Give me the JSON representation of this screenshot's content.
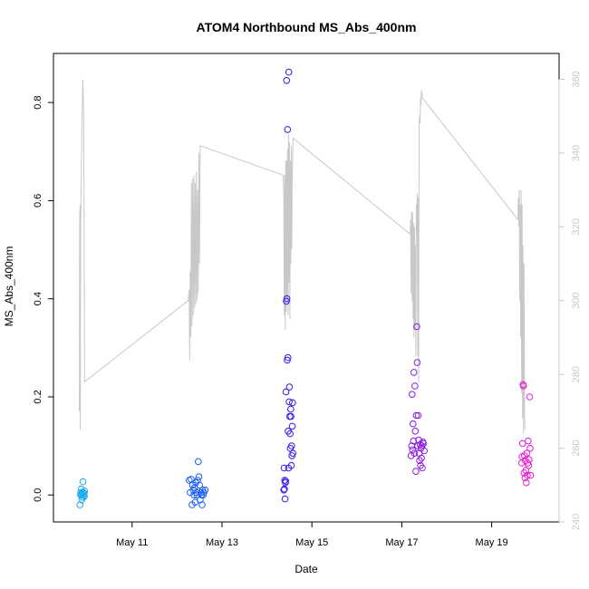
{
  "chart_data": {
    "type": "scatter",
    "title": "ATOM4 Northbound MS_Abs_400nm",
    "xlabel": "Date",
    "ylabel": "MS_Abs_400nm",
    "xlim": [
      "2016-05-09 06:00",
      "2016-05-20 12:00"
    ],
    "ylim": [
      -0.055,
      0.9
    ],
    "y2lim": [
      240,
      367
    ],
    "x_ticks": [
      {
        "date": "2016-05-11",
        "label": "May 11"
      },
      {
        "date": "2016-05-13",
        "label": "May 13"
      },
      {
        "date": "2016-05-15",
        "label": "May 15"
      },
      {
        "date": "2016-05-17",
        "label": "May 17"
      },
      {
        "date": "2016-05-19",
        "label": "May 19"
      }
    ],
    "y_ticks": [
      0.0,
      0.2,
      0.4,
      0.6,
      0.8
    ],
    "y_tick_labels": [
      "0.0",
      "0.2",
      "0.4",
      "0.6",
      "0.8"
    ],
    "y2_ticks": [
      240,
      260,
      280,
      300,
      320,
      340,
      360
    ],
    "y2_tick_labels": [
      "240",
      "260",
      "280",
      "300",
      "320",
      "340",
      "360"
    ],
    "colors": {
      "line": "#c8c8c8",
      "day1": "#1ea8f0",
      "day2": "#1a5cf5",
      "day3": "#3b14f0",
      "day4": "#8a1ae0",
      "day5": "#e61ad6",
      "axis": "#000000",
      "right_axis": "#c8c8c8"
    },
    "series": [
      {
        "color_key": "day1",
        "points": [
          [
            "2016-05-09 20:10",
            -0.02
          ],
          [
            "2016-05-09 20:25",
            0.0
          ],
          [
            "2016-05-09 20:35",
            0.005
          ],
          [
            "2016-05-09 20:45",
            0.012
          ],
          [
            "2016-05-09 21:00",
            0.0
          ],
          [
            "2016-05-09 21:10",
            -0.01
          ],
          [
            "2016-05-09 21:25",
            0.005
          ],
          [
            "2016-05-09 21:35",
            -0.005
          ],
          [
            "2016-05-09 21:45",
            0.027
          ],
          [
            "2016-05-09 22:00",
            0.005
          ],
          [
            "2016-05-09 22:10",
            0.0
          ],
          [
            "2016-05-09 22:20",
            0.003
          ],
          [
            "2016-05-09 22:30",
            -0.003
          ],
          [
            "2016-05-09 22:40",
            0.008
          ]
        ]
      },
      {
        "color_key": "day2",
        "points": [
          [
            "2016-05-12 06:30",
            0.03
          ],
          [
            "2016-05-12 07:00",
            0.005
          ],
          [
            "2016-05-12 07:30",
            0.032
          ],
          [
            "2016-05-12 08:00",
            -0.02
          ],
          [
            "2016-05-12 08:20",
            0.02
          ],
          [
            "2016-05-12 08:40",
            0.01
          ],
          [
            "2016-05-12 09:00",
            0.0
          ],
          [
            "2016-05-12 09:20",
            0.015
          ],
          [
            "2016-05-12 09:40",
            -0.015
          ],
          [
            "2016-05-12 10:00",
            0.025
          ],
          [
            "2016-05-12 10:20",
            0.005
          ],
          [
            "2016-05-12 10:40",
            0.0
          ],
          [
            "2016-05-12 11:00",
            0.03
          ],
          [
            "2016-05-12 11:20",
            0.068
          ],
          [
            "2016-05-12 11:40",
            0.037
          ],
          [
            "2016-05-12 12:00",
            0.02
          ],
          [
            "2016-05-12 12:20",
            -0.01
          ],
          [
            "2016-05-12 12:40",
            0.005
          ],
          [
            "2016-05-12 13:00",
            0.0
          ],
          [
            "2016-05-12 13:20",
            -0.02
          ],
          [
            "2016-05-12 13:40",
            0.01
          ],
          [
            "2016-05-12 14:00",
            0.0
          ],
          [
            "2016-05-12 14:20",
            0.005
          ],
          [
            "2016-05-12 15:00",
            0.01
          ]
        ]
      },
      {
        "color_key": "day3",
        "points": [
          [
            "2016-05-14 09:00",
            0.01
          ],
          [
            "2016-05-14 09:10",
            0.055
          ],
          [
            "2016-05-14 09:20",
            0.012
          ],
          [
            "2016-05-14 09:30",
            0.03
          ],
          [
            "2016-05-14 09:40",
            -0.008
          ],
          [
            "2016-05-14 09:50",
            0.025
          ],
          [
            "2016-05-14 10:00",
            0.028
          ],
          [
            "2016-05-14 10:10",
            0.21
          ],
          [
            "2016-05-14 10:20",
            0.395
          ],
          [
            "2016-05-14 10:30",
            0.845
          ],
          [
            "2016-05-14 10:40",
            0.4
          ],
          [
            "2016-05-14 10:50",
            0.275
          ],
          [
            "2016-05-14 11:00",
            0.745
          ],
          [
            "2016-05-14 11:10",
            0.28
          ],
          [
            "2016-05-14 11:20",
            0.13
          ],
          [
            "2016-05-14 11:30",
            0.055
          ],
          [
            "2016-05-14 11:40",
            0.862
          ],
          [
            "2016-05-14 11:50",
            0.19
          ],
          [
            "2016-05-14 12:00",
            0.22
          ],
          [
            "2016-05-14 12:10",
            0.16
          ],
          [
            "2016-05-14 12:20",
            0.125
          ],
          [
            "2016-05-14 12:30",
            0.095
          ],
          [
            "2016-05-14 12:40",
            0.175
          ],
          [
            "2016-05-14 12:50",
            0.16
          ],
          [
            "2016-05-14 13:00",
            0.06
          ],
          [
            "2016-05-14 13:10",
            0.1
          ],
          [
            "2016-05-14 13:20",
            0.08
          ],
          [
            "2016-05-14 13:30",
            0.14
          ],
          [
            "2016-05-14 13:40",
            0.188
          ],
          [
            "2016-05-14 13:50",
            0.085
          ]
        ]
      },
      {
        "color_key": "day4",
        "points": [
          [
            "2016-05-17 05:00",
            0.08
          ],
          [
            "2016-05-17 05:15",
            0.1
          ],
          [
            "2016-05-17 05:30",
            0.205
          ],
          [
            "2016-05-17 05:45",
            0.092
          ],
          [
            "2016-05-17 06:00",
            0.145
          ],
          [
            "2016-05-17 06:15",
            0.11
          ],
          [
            "2016-05-17 06:30",
            0.25
          ],
          [
            "2016-05-17 06:45",
            0.085
          ],
          [
            "2016-05-17 07:00",
            0.222
          ],
          [
            "2016-05-17 07:15",
            0.13
          ],
          [
            "2016-05-17 07:30",
            0.048
          ],
          [
            "2016-05-17 07:45",
            0.162
          ],
          [
            "2016-05-17 08:00",
            0.343
          ],
          [
            "2016-05-17 08:15",
            0.27
          ],
          [
            "2016-05-17 08:30",
            0.1
          ],
          [
            "2016-05-17 08:45",
            0.162
          ],
          [
            "2016-05-17 09:00",
            0.112
          ],
          [
            "2016-05-17 09:15",
            0.085
          ],
          [
            "2016-05-17 09:30",
            0.07
          ],
          [
            "2016-05-17 09:45",
            0.103
          ],
          [
            "2016-05-17 10:00",
            0.06
          ],
          [
            "2016-05-17 10:15",
            0.095
          ],
          [
            "2016-05-17 10:30",
            0.075
          ],
          [
            "2016-05-17 10:45",
            0.1
          ],
          [
            "2016-05-17 11:00",
            0.055
          ],
          [
            "2016-05-17 11:15",
            0.108
          ],
          [
            "2016-05-17 11:30",
            0.105
          ],
          [
            "2016-05-17 12:00",
            0.09
          ]
        ]
      },
      {
        "color_key": "day5",
        "points": [
          [
            "2016-05-19 16:00",
            0.065
          ],
          [
            "2016-05-19 16:15",
            0.078
          ],
          [
            "2016-05-19 16:30",
            0.105
          ],
          [
            "2016-05-19 16:45",
            0.225
          ],
          [
            "2016-05-19 17:00",
            0.222
          ],
          [
            "2016-05-19 17:15",
            0.045
          ],
          [
            "2016-05-19 17:30",
            0.08
          ],
          [
            "2016-05-19 17:45",
            0.035
          ],
          [
            "2016-05-19 18:00",
            0.07
          ],
          [
            "2016-05-19 18:15",
            0.05
          ],
          [
            "2016-05-19 18:30",
            0.025
          ],
          [
            "2016-05-19 18:45",
            0.085
          ],
          [
            "2016-05-19 19:00",
            0.04
          ],
          [
            "2016-05-19 19:15",
            0.065
          ],
          [
            "2016-05-19 19:30",
            0.11
          ],
          [
            "2016-05-19 19:45",
            0.06
          ],
          [
            "2016-05-19 20:00",
            0.072
          ],
          [
            "2016-05-19 20:15",
            0.2
          ],
          [
            "2016-05-19 20:30",
            0.095
          ],
          [
            "2016-05-19 20:45",
            0.04
          ]
        ]
      }
    ],
    "right_axis_line": [
      [
        "2016-05-09 19:50",
        270
      ],
      [
        "2016-05-09 20:00",
        320
      ],
      [
        "2016-05-09 20:10",
        326
      ],
      [
        "2016-05-09 20:20",
        265
      ],
      [
        "2016-05-09 20:30",
        320
      ],
      [
        "2016-05-09 21:10",
        345
      ],
      [
        "2016-05-09 21:40",
        360
      ],
      [
        "2016-05-09 22:10",
        350
      ],
      [
        "2016-05-09 22:40",
        278
      ],
      [
        "2016-05-12 06:00",
        300
      ],
      [
        "2016-05-12 06:30",
        303
      ],
      [
        "2016-05-12 06:45",
        284
      ],
      [
        "2016-05-12 07:00",
        308
      ],
      [
        "2016-05-12 07:20",
        290
      ],
      [
        "2016-05-12 07:40",
        332
      ],
      [
        "2016-05-12 08:00",
        293
      ],
      [
        "2016-05-12 08:20",
        333
      ],
      [
        "2016-05-12 08:40",
        296
      ],
      [
        "2016-05-12 09:00",
        334
      ],
      [
        "2016-05-12 09:20",
        298
      ],
      [
        "2016-05-12 09:40",
        332
      ],
      [
        "2016-05-12 10:00",
        299
      ],
      [
        "2016-05-12 10:20",
        335
      ],
      [
        "2016-05-12 10:40",
        300
      ],
      [
        "2016-05-12 11:00",
        330
      ],
      [
        "2016-05-12 11:20",
        302
      ],
      [
        "2016-05-12 11:40",
        340
      ],
      [
        "2016-05-12 12:00",
        310
      ],
      [
        "2016-05-12 12:20",
        342
      ],
      [
        "2016-05-14 08:40",
        334
      ],
      [
        "2016-05-14 09:00",
        328
      ],
      [
        "2016-05-14 09:15",
        296
      ],
      [
        "2016-05-14 09:30",
        334
      ],
      [
        "2016-05-14 09:45",
        292
      ],
      [
        "2016-05-14 10:00",
        338
      ],
      [
        "2016-05-14 10:15",
        297
      ],
      [
        "2016-05-14 10:30",
        338
      ],
      [
        "2016-05-14 10:45",
        300
      ],
      [
        "2016-05-14 11:00",
        341
      ],
      [
        "2016-05-14 11:15",
        296
      ],
      [
        "2016-05-14 11:30",
        345
      ],
      [
        "2016-05-14 11:45",
        305
      ],
      [
        "2016-05-14 12:00",
        343
      ],
      [
        "2016-05-14 12:15",
        295
      ],
      [
        "2016-05-14 12:30",
        338
      ],
      [
        "2016-05-14 12:45",
        310
      ],
      [
        "2016-05-14 13:00",
        342
      ],
      [
        "2016-05-14 13:15",
        314
      ],
      [
        "2016-05-14 13:30",
        334
      ],
      [
        "2016-05-14 13:45",
        338
      ],
      [
        "2016-05-14 14:00",
        344
      ],
      [
        "2016-05-17 04:30",
        318
      ],
      [
        "2016-05-17 04:45",
        322
      ],
      [
        "2016-05-17 05:00",
        302
      ],
      [
        "2016-05-17 05:15",
        324
      ],
      [
        "2016-05-17 05:30",
        300
      ],
      [
        "2016-05-17 05:45",
        324
      ],
      [
        "2016-05-17 06:00",
        295
      ],
      [
        "2016-05-17 06:15",
        321
      ],
      [
        "2016-05-17 06:30",
        290
      ],
      [
        "2016-05-17 06:45",
        320
      ],
      [
        "2016-05-17 07:00",
        292
      ],
      [
        "2016-05-17 07:15",
        315
      ],
      [
        "2016-05-17 07:30",
        285
      ],
      [
        "2016-05-17 07:45",
        326
      ],
      [
        "2016-05-17 08:00",
        318
      ],
      [
        "2016-05-17 08:15",
        329
      ],
      [
        "2016-05-17 08:30",
        285
      ],
      [
        "2016-05-17 08:45",
        328
      ],
      [
        "2016-05-17 09:00",
        278
      ],
      [
        "2016-05-17 09:15",
        348
      ],
      [
        "2016-05-17 09:30",
        350
      ],
      [
        "2016-05-17 09:45",
        348
      ],
      [
        "2016-05-17 10:00",
        355
      ],
      [
        "2016-05-17 10:15",
        353
      ],
      [
        "2016-05-17 10:30",
        357
      ],
      [
        "2016-05-17 11:00",
        355
      ],
      [
        "2016-05-19 14:00",
        322
      ],
      [
        "2016-05-19 14:15",
        328
      ],
      [
        "2016-05-19 14:30",
        320
      ],
      [
        "2016-05-19 14:45",
        330
      ],
      [
        "2016-05-19 15:00",
        300
      ],
      [
        "2016-05-19 15:15",
        326
      ],
      [
        "2016-05-19 15:30",
        290
      ],
      [
        "2016-05-19 15:45",
        330
      ],
      [
        "2016-05-19 16:00",
        275
      ],
      [
        "2016-05-19 16:15",
        326
      ],
      [
        "2016-05-19 16:30",
        268
      ],
      [
        "2016-05-19 16:45",
        315
      ],
      [
        "2016-05-19 17:00",
        264
      ],
      [
        "2016-05-19 17:15",
        310
      ],
      [
        "2016-05-19 17:30",
        272
      ],
      [
        "2016-05-19 17:45",
        265
      ]
    ]
  }
}
